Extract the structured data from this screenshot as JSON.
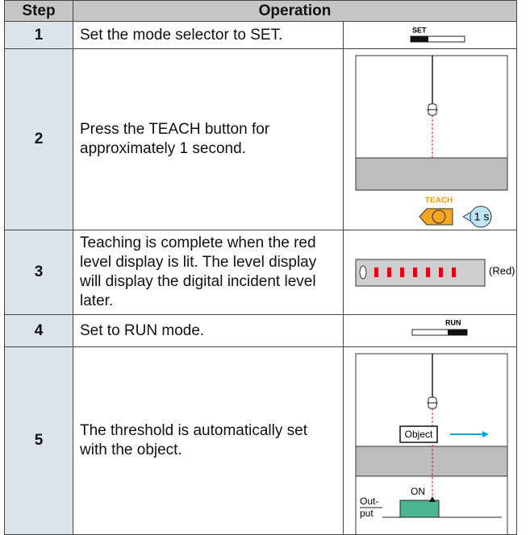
{
  "table": {
    "header": [
      "Step",
      "Operation"
    ],
    "rows": [
      {
        "step": "1",
        "operation": "Set the mode selector to SET.",
        "figure": {
          "switch_label": "SET"
        }
      },
      {
        "step": "2",
        "operation": "Press the TEACH button for approximately 1 second.",
        "figure": {
          "button_label": "TEACH",
          "duration": "1 s"
        }
      },
      {
        "step": "3",
        "operation": "Teaching is complete when the red level display is lit. The level display will display the digital incident level later.",
        "figure": {
          "color_note": "(Red)"
        }
      },
      {
        "step": "4",
        "operation": "Set to RUN mode.",
        "figure": {
          "switch_label": "RUN"
        }
      },
      {
        "step": "5",
        "operation": "The threshold is automatically set with the object.",
        "figure": {
          "object_label": "Object",
          "signal_label": "ON",
          "output_label": [
            "Out-",
            "put"
          ]
        }
      }
    ]
  }
}
